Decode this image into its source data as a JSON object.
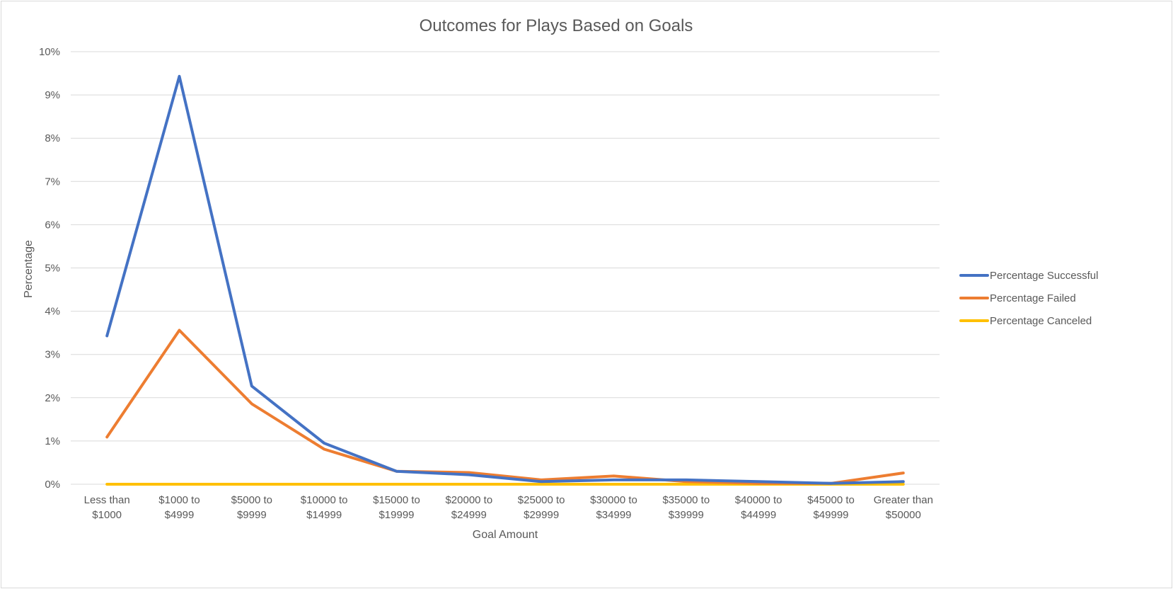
{
  "chart_data": {
    "type": "line",
    "title": "Outcomes for Plays Based on Goals",
    "xlabel": "Goal Amount",
    "ylabel": "Percentage",
    "categories": [
      [
        "Less than",
        "$1000"
      ],
      [
        "$1000 to",
        "$4999"
      ],
      [
        "$5000 to",
        "$9999"
      ],
      [
        "$10000 to",
        "$14999"
      ],
      [
        "$15000 to",
        "$19999"
      ],
      [
        "$20000 to",
        "$24999"
      ],
      [
        "$25000 to",
        "$29999"
      ],
      [
        "$30000 to",
        "$34999"
      ],
      [
        "$35000 to",
        "$39999"
      ],
      [
        "$40000 to",
        "$44999"
      ],
      [
        "$45000 to",
        "$49999"
      ],
      [
        "Greater than",
        "$50000"
      ]
    ],
    "ylim": [
      0,
      10
    ],
    "yticks": [
      0,
      1,
      2,
      3,
      4,
      5,
      6,
      7,
      8,
      9,
      10
    ],
    "ytick_format": "%",
    "grid": true,
    "legend_position": "right",
    "series": [
      {
        "name": "Percentage Successful",
        "color": "#4472C4",
        "values": [
          3.43,
          9.43,
          2.27,
          0.95,
          0.3,
          0.22,
          0.06,
          0.1,
          0.1,
          0.06,
          0.02,
          0.06
        ]
      },
      {
        "name": "Percentage Failed",
        "color": "#ED7D31",
        "values": [
          1.09,
          3.56,
          1.86,
          0.81,
          0.3,
          0.27,
          0.1,
          0.19,
          0.06,
          0.02,
          0.02,
          0.26
        ]
      },
      {
        "name": "Percentage Canceled",
        "color": "#FFC000",
        "values": [
          0,
          0,
          0,
          0,
          0,
          0,
          0,
          0,
          0,
          0,
          0,
          0
        ]
      }
    ]
  }
}
